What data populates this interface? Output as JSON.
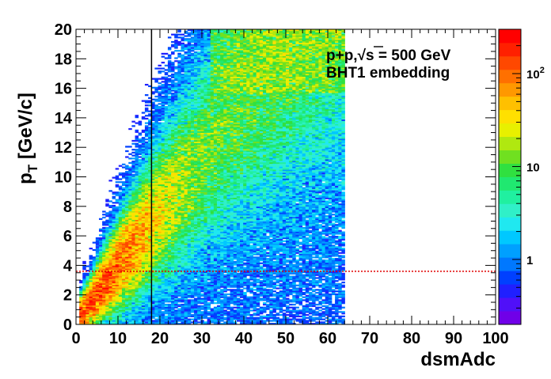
{
  "chart_data": {
    "type": "heatmap",
    "title": "",
    "xlabel": "dsmAdc",
    "ylabel_main": "p",
    "ylabel_sub": "T",
    "ylabel_rest": " [GeV/c]",
    "xlim": [
      0,
      100
    ],
    "ylim": [
      0,
      20
    ],
    "x_ticks": [
      0,
      10,
      20,
      30,
      40,
      50,
      60,
      70,
      80,
      90,
      100
    ],
    "y_ticks": [
      0,
      2,
      4,
      6,
      8,
      10,
      12,
      14,
      16,
      18,
      20
    ],
    "grid": false,
    "log_z": true,
    "zlim": [
      0.2,
      300
    ],
    "colorbar_labels": [
      {
        "base": "1",
        "exp": ""
      },
      {
        "base": "10",
        "exp": ""
      },
      {
        "base": "10",
        "exp": "2"
      }
    ],
    "annotations": {
      "line1_prefix": "p+p,",
      "line1_sqrt": "s",
      "line1_suffix": " = 500 GeV",
      "line2": "BHT1 embedding"
    },
    "reference_lines": {
      "vertical_x": 18,
      "horizontal_y": 3.6
    },
    "distribution": {
      "ridge_slope_pt_per_adc": 0.37,
      "ridge_offset": 0.2,
      "peak_count": 250,
      "occupied_x_range": [
        1,
        64
      ],
      "upper_band_start_x": 32
    }
  },
  "colors": {
    "palette": [
      "#7000e8",
      "#5010f8",
      "#2020ff",
      "#0040ff",
      "#0078ff",
      "#00a0ff",
      "#00c8ff",
      "#20e8f0",
      "#30f0c8",
      "#20f0a0",
      "#20e870",
      "#30e040",
      "#70e020",
      "#b0e810",
      "#e8f000",
      "#ffe000",
      "#ffc000",
      "#ff9800",
      "#ff7000",
      "#ff4800",
      "#ff2000",
      "#ff0000"
    ],
    "horizontal_line": "#e00000",
    "vertical_line": "#000000"
  }
}
